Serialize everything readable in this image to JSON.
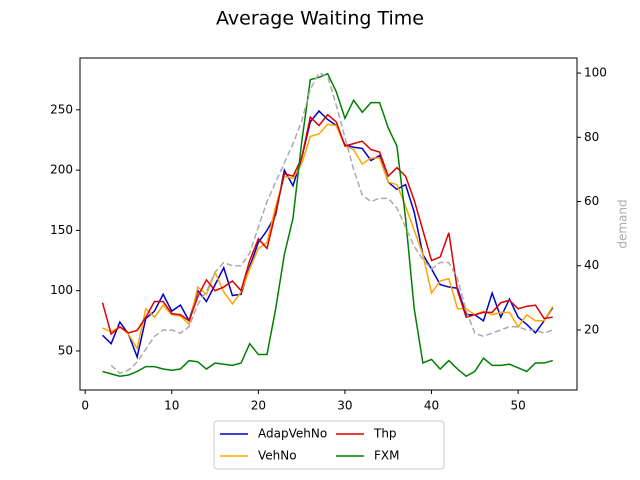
{
  "chart_data": {
    "type": "line",
    "title": "Average Waiting Time",
    "y2label": "demand",
    "x": [
      2,
      3,
      4,
      5,
      6,
      7,
      8,
      9,
      10,
      11,
      12,
      13,
      14,
      15,
      16,
      17,
      18,
      19,
      20,
      21,
      22,
      23,
      24,
      25,
      26,
      27,
      28,
      29,
      30,
      31,
      32,
      33,
      34,
      35,
      36,
      37,
      38,
      39,
      40,
      41,
      42,
      43,
      44,
      45,
      46,
      47,
      48,
      49,
      50,
      51,
      52,
      53,
      54
    ],
    "series": [
      {
        "name": "AdapVehNo",
        "color": "#0000cc",
        "values": [
          63,
          56,
          74,
          64,
          45,
          77,
          83,
          97,
          83,
          88,
          75,
          100,
          91,
          105,
          119,
          96,
          97,
          120,
          140,
          150,
          163,
          200,
          187,
          210,
          240,
          249,
          242,
          237,
          221,
          219,
          218,
          208,
          212,
          190,
          184,
          188,
          165,
          130,
          118,
          105,
          103,
          102,
          80,
          80,
          75,
          98,
          78,
          93,
          78,
          72,
          65,
          75,
          86
        ]
      },
      {
        "name": "VehNo",
        "color": "#ffa500",
        "values": [
          69,
          66,
          70,
          64,
          52,
          85,
          78,
          88,
          80,
          79,
          72,
          103,
          97,
          115,
          99,
          89,
          99,
          118,
          135,
          140,
          170,
          195,
          193,
          205,
          228,
          230,
          238,
          237,
          220,
          217,
          205,
          210,
          210,
          190,
          188,
          170,
          150,
          130,
          98,
          108,
          110,
          85,
          85,
          80,
          83,
          80,
          82,
          82,
          70,
          80,
          75,
          75,
          87
        ]
      },
      {
        "name": "Thp",
        "color": "#dd0000",
        "values": [
          90,
          64,
          70,
          65,
          67,
          78,
          91,
          91,
          81,
          80,
          75,
          95,
          109,
          100,
          103,
          108,
          100,
          125,
          143,
          135,
          165,
          197,
          195,
          210,
          244,
          237,
          246,
          240,
          220,
          222,
          224,
          217,
          215,
          195,
          202,
          195,
          175,
          150,
          125,
          128,
          148,
          100,
          78,
          80,
          82,
          82,
          90,
          92,
          85,
          87,
          88,
          77,
          78
        ]
      },
      {
        "name": "FXM",
        "color": "#008000",
        "values": [
          33,
          31,
          29,
          30,
          33,
          37,
          37,
          35,
          34,
          35,
          42,
          41,
          35,
          40,
          39,
          38,
          40,
          56,
          47,
          47,
          85,
          130,
          160,
          223,
          275,
          277,
          280,
          265,
          243,
          258,
          248,
          256,
          256,
          235,
          220,
          160,
          85,
          40,
          43,
          35,
          42,
          35,
          29,
          33,
          44,
          38,
          38,
          39,
          36,
          33,
          40,
          40,
          42
        ]
      },
      {
        "color": "#aaaaaa",
        "dashed": true,
        "axis": "y2",
        "values": [
          null,
          9,
          6.5,
          7.5,
          10,
          14,
          18,
          20,
          20,
          19,
          21,
          28,
          32,
          38,
          41,
          40,
          40,
          44,
          52,
          60,
          66,
          72,
          78,
          85,
          95,
          100,
          99,
          90,
          80,
          70,
          62,
          60,
          61,
          61,
          58,
          52,
          46,
          42,
          39,
          41,
          41,
          36,
          26,
          19,
          18,
          19,
          20,
          21,
          21,
          20,
          20,
          19,
          20
        ]
      }
    ],
    "xlim": [
      -0.6,
      56.8
    ],
    "xticks": [
      0,
      10,
      20,
      30,
      40,
      50
    ],
    "ylim": [
      17.6,
      293
    ],
    "yticks": [
      50,
      100,
      150,
      200,
      250
    ],
    "y2lim": [
      1.3,
      104.7
    ],
    "y2ticks": [
      20,
      40,
      60,
      80,
      100
    ],
    "legend": "lower center"
  }
}
